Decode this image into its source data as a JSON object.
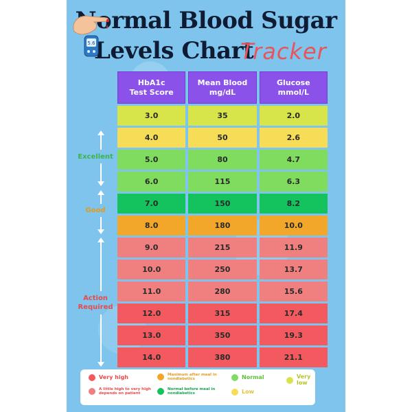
{
  "title": {
    "line1": "Normal Blood Sugar",
    "line2": "Levels Chart",
    "line2_accent": "Tracker"
  },
  "meter_reading": "5.6",
  "table": {
    "headers": [
      "HbA1c\nTest Score",
      "Mean Blood\nmg/dL",
      "Glucose\nmmol/L"
    ],
    "rows": [
      {
        "a1c": "3.0",
        "mgdl": "35",
        "mmol": "2.0",
        "color": "#d7e54a"
      },
      {
        "a1c": "4.0",
        "mgdl": "50",
        "mmol": "2.6",
        "color": "#f7dc58"
      },
      {
        "a1c": "5.0",
        "mgdl": "80",
        "mmol": "4.7",
        "color": "#7fdc5e"
      },
      {
        "a1c": "6.0",
        "mgdl": "115",
        "mmol": "6.3",
        "color": "#7fdc5e"
      },
      {
        "a1c": "7.0",
        "mgdl": "150",
        "mmol": "8.2",
        "color": "#14c25e"
      },
      {
        "a1c": "8.0",
        "mgdl": "180",
        "mmol": "10.0",
        "color": "#f2a72a"
      },
      {
        "a1c": "9.0",
        "mgdl": "215",
        "mmol": "11.9",
        "color": "#f08080"
      },
      {
        "a1c": "10.0",
        "mgdl": "250",
        "mmol": "13.7",
        "color": "#f08080"
      },
      {
        "a1c": "11.0",
        "mgdl": "280",
        "mmol": "15.6",
        "color": "#f08080"
      },
      {
        "a1c": "12.0",
        "mgdl": "315",
        "mmol": "17.4",
        "color": "#f25a5f"
      },
      {
        "a1c": "13.0",
        "mgdl": "350",
        "mmol": "19.3",
        "color": "#f25a5f"
      },
      {
        "a1c": "14.0",
        "mgdl": "380",
        "mmol": "21.1",
        "color": "#f25a5f"
      }
    ]
  },
  "side_labels": {
    "excellent": {
      "text": "Excellent",
      "color": "#3cb44b"
    },
    "good": {
      "text": "Good",
      "color": "#e59a1a"
    },
    "action": {
      "text": "Action\nRequired",
      "color": "#e84a4a"
    }
  },
  "legend": {
    "very_high": {
      "text": "Very high",
      "color": "#f25a5f"
    },
    "little_high": {
      "text": "A little high to very high\ndepends on patient",
      "color": "#f08080"
    },
    "max_after_meal": {
      "text": "Maximum after meal in\nnondiabetics",
      "color": "#f2a72a"
    },
    "normal_before_meal": {
      "text": "Normal before meal in\nnondiabetics",
      "color": "#14c25e"
    },
    "normal": {
      "text": "Normal",
      "color": "#7fdc5e"
    },
    "low": {
      "text": "Low",
      "color": "#f7dc58"
    },
    "very_low": {
      "text": "Very low",
      "color": "#d7e54a"
    }
  }
}
